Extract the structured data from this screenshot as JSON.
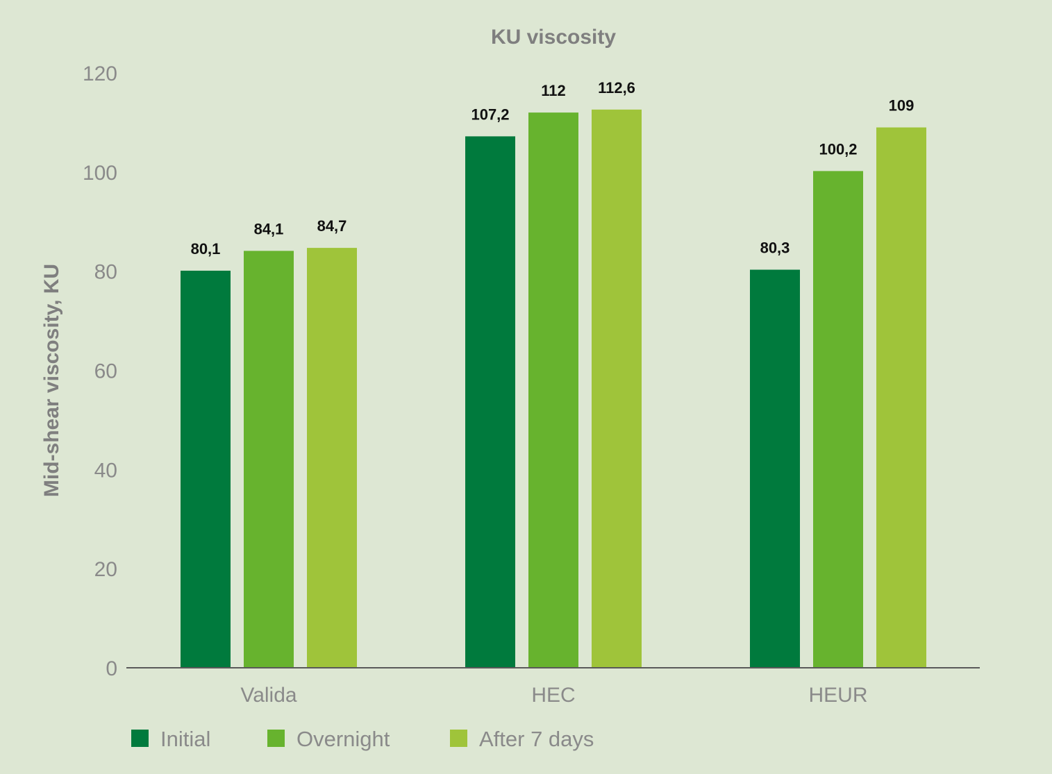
{
  "chart_data": {
    "type": "bar",
    "title": "KU viscosity",
    "xlabel": "",
    "ylabel": "Mid-shear viscosity, KU",
    "ylim": [
      0,
      120
    ],
    "yticks": [
      "0",
      "20",
      "40",
      "60",
      "80",
      "100",
      "120"
    ],
    "grid": false,
    "legend_position": "bottom-left",
    "categories": [
      "Valida",
      "HEC",
      "HEUR"
    ],
    "series": [
      {
        "name": "Initial",
        "color": "#007a3d",
        "values": [
          80.1,
          107.2,
          80.3
        ],
        "labels": [
          "80,1",
          "107,2",
          "80,3"
        ]
      },
      {
        "name": "Overnight",
        "color": "#67b32e",
        "values": [
          84.1,
          112,
          100.2
        ],
        "labels": [
          "84,1",
          "112",
          "100,2"
        ]
      },
      {
        "name": "After 7 days",
        "color": "#9fc43a",
        "values": [
          84.7,
          112.6,
          109
        ],
        "labels": [
          "84,7",
          "112,6",
          "109"
        ]
      }
    ]
  }
}
